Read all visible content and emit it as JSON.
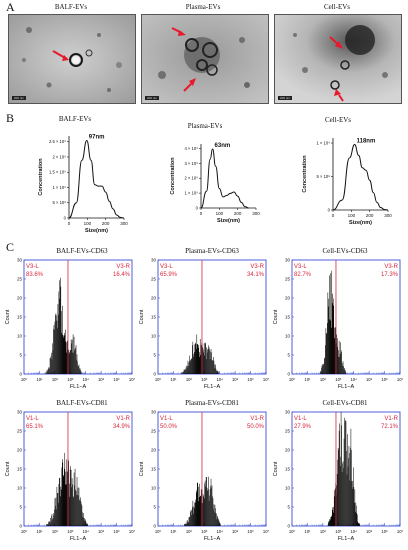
{
  "panel_labels": {
    "a": "A",
    "b": "B",
    "c": "C"
  },
  "panel_a": {
    "images": [
      {
        "title": "BALF-EVs",
        "scale_label": "200 nm"
      },
      {
        "title": "Plasma-EVs",
        "scale_label": "200 nm"
      },
      {
        "title": "Cell-EVs",
        "scale_label": "200 nm"
      }
    ],
    "arrow_color": "#e8192c"
  },
  "panel_b": {
    "ylabel": "Concentration",
    "xlabel": "Size(nm)"
  },
  "panel_c": {
    "xlabel": "FL1−A",
    "ylabel": "Count",
    "gate_color": "#d9263a",
    "frame_color": "#3b4fd6"
  },
  "chart_data": [
    {
      "type": "line",
      "title": "BALF-EVs",
      "peak_label": "97nm",
      "xlabel": "Size(nm)",
      "ylabel": "Concentration",
      "x": [
        0,
        40,
        70,
        97,
        120,
        140,
        160,
        180,
        200,
        220,
        240,
        260,
        280,
        300
      ],
      "y": [
        0,
        0.5,
        1.9,
        2.55,
        1.9,
        1.1,
        1.05,
        1.05,
        0.85,
        0.55,
        0.3,
        0.1,
        0.02,
        0
      ],
      "xticks": [
        "0",
        "100",
        "200",
        "300"
      ],
      "yticks": [
        "0",
        "5 × 10⁸",
        "1 × 10⁹",
        "1.5 × 10⁹",
        "2 × 10⁹",
        "2.5 × 10⁹"
      ],
      "ylim": [
        0,
        2.7
      ],
      "xlim": [
        0,
        300
      ]
    },
    {
      "type": "line",
      "title": "Plasma-EVs",
      "peak_label": "63nm",
      "xlabel": "Size(nm)",
      "ylabel": "Concentration",
      "x": [
        0,
        30,
        50,
        63,
        80,
        100,
        120,
        140,
        160,
        180,
        200,
        220,
        240,
        260
      ],
      "y": [
        0,
        1.2,
        3.5,
        4.25,
        3.0,
        1.4,
        0.8,
        0.9,
        1.05,
        1.15,
        0.85,
        0.4,
        0.1,
        0
      ],
      "xticks": [
        "0",
        "100",
        "200",
        "300"
      ],
      "yticks": [
        "0",
        "1 × 10⁹",
        "2 × 10⁹",
        "3 × 10⁹",
        "4 × 10⁹"
      ],
      "ylim": [
        0,
        4.6
      ],
      "xlim": [
        0,
        300
      ]
    },
    {
      "type": "line",
      "title": "Cell-EVs",
      "peak_label": "118nm",
      "xlabel": "Size(nm)",
      "ylabel": "Concentration",
      "x": [
        0,
        50,
        90,
        118,
        140,
        160,
        180,
        200,
        220,
        240,
        260,
        280,
        300
      ],
      "y": [
        0,
        0.2,
        1.05,
        1.32,
        1.1,
        0.85,
        0.8,
        0.6,
        0.35,
        0.15,
        0.05,
        0.01,
        0
      ],
      "xticks": [
        "0",
        "100",
        "200",
        "300"
      ],
      "yticks": [
        "0",
        "5 × 10⁸",
        "1 × 10⁹"
      ],
      "ylim": [
        0,
        1.45
      ],
      "xlim": [
        0,
        300
      ]
    },
    {
      "type": "bar",
      "title": "BALF-EVs-CD63",
      "gate_left": "V3-L",
      "gate_right": "V3-R",
      "left_pct": "83.6%",
      "right_pct": "16.4%",
      "xticks": [
        "10⁰",
        "10¹",
        "10²",
        "10³",
        "10⁴",
        "10⁵",
        "10⁶",
        "10⁷"
      ],
      "yticks": [
        "0",
        "5",
        "10",
        "15",
        "20",
        "25",
        "30"
      ],
      "ylim": [
        0,
        30
      ],
      "peak_decade": 2.3,
      "peak_height": 21,
      "spread": 0.45,
      "second_peak_decade": 3.2,
      "second_height": 8
    },
    {
      "type": "bar",
      "title": "Plasma-EVs-CD63",
      "gate_left": "V3-L",
      "gate_right": "V3-R",
      "left_pct": "65.9%",
      "right_pct": "34.1%",
      "xticks": [
        "10⁰",
        "10¹",
        "10²",
        "10³",
        "10⁴",
        "10⁵",
        "10⁶",
        "10⁷"
      ],
      "yticks": [
        "0",
        "5",
        "10",
        "15",
        "20",
        "25",
        "30"
      ],
      "ylim": [
        0,
        30
      ],
      "peak_decade": 2.5,
      "peak_height": 8,
      "spread": 0.55,
      "second_peak_decade": 3.3,
      "second_height": 6
    },
    {
      "type": "bar",
      "title": "Cell-EVs-CD63",
      "gate_left": "V3-L",
      "gate_right": "V3-R",
      "left_pct": "82.7%",
      "right_pct": "17.3%",
      "xticks": [
        "10⁰",
        "10¹",
        "10²",
        "10³",
        "10⁴",
        "10⁵",
        "10⁶",
        "10⁷"
      ],
      "yticks": [
        "0",
        "5",
        "10",
        "15",
        "20",
        "25",
        "30"
      ],
      "ylim": [
        0,
        30
      ],
      "peak_decade": 2.5,
      "peak_height": 22,
      "spread": 0.35,
      "second_peak_decade": 3.1,
      "second_height": 6
    },
    {
      "type": "bar",
      "title": "BALF-EVs-CD81",
      "gate_left": "V1-L",
      "gate_right": "V1-R",
      "left_pct": "65.1%",
      "right_pct": "34.9%",
      "xticks": [
        "10⁰",
        "10¹",
        "10²",
        "10³",
        "10⁴",
        "10⁵",
        "10⁶",
        "10⁷"
      ],
      "yticks": [
        "0",
        "5",
        "10",
        "15",
        "20",
        "25",
        "30"
      ],
      "ylim": [
        0,
        30
      ],
      "peak_decade": 2.6,
      "peak_height": 15,
      "spread": 0.6,
      "second_peak_decade": 3.4,
      "second_height": 9
    },
    {
      "type": "bar",
      "title": "Plasma-EVs-CD81",
      "gate_left": "V1-L",
      "gate_right": "V1-R",
      "left_pct": "50.0%",
      "right_pct": "50.0%",
      "xticks": [
        "10⁰",
        "10¹",
        "10²",
        "10³",
        "10⁴",
        "10⁵",
        "10⁶",
        "10⁷"
      ],
      "yticks": [
        "0",
        "5",
        "10",
        "15",
        "20",
        "25",
        "30"
      ],
      "ylim": [
        0,
        30
      ],
      "peak_decade": 2.7,
      "peak_height": 10,
      "spread": 0.55,
      "second_peak_decade": 3.4,
      "second_height": 9
    },
    {
      "type": "bar",
      "title": "Cell-EVs-CD81",
      "gate_left": "V1-L",
      "gate_right": "V1-R",
      "left_pct": "27.9%",
      "right_pct": "72.1%",
      "xticks": [
        "10⁰",
        "10¹",
        "10²",
        "10³",
        "10⁴",
        "10⁵",
        "10⁶",
        "10⁷"
      ],
      "yticks": [
        "0",
        "5",
        "10",
        "15",
        "20",
        "25",
        "30"
      ],
      "ylim": [
        0,
        30
      ],
      "peak_decade": 3.2,
      "peak_height": 25,
      "spread": 0.45,
      "second_peak_decade": 3.8,
      "second_height": 16
    }
  ]
}
